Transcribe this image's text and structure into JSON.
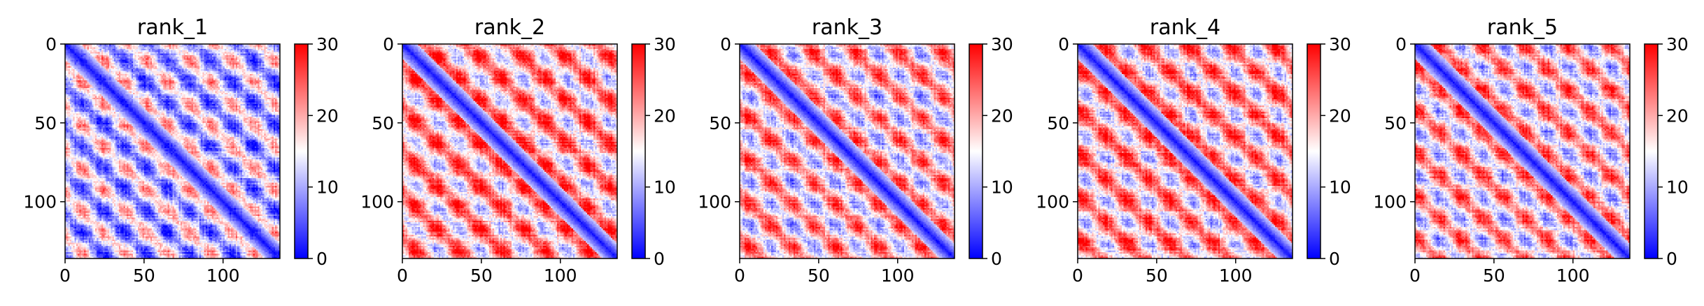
{
  "chart_data": [
    {
      "type": "heatmap",
      "title": "rank_1",
      "matrix_size": 136,
      "xlim": [
        0,
        136
      ],
      "ylim": [
        136,
        0
      ],
      "x_ticks": [
        0,
        50,
        100
      ],
      "y_ticks": [
        0,
        50,
        100
      ],
      "colorbar": {
        "min": 0,
        "max": 30,
        "ticks": [
          0,
          10,
          20,
          30
        ]
      },
      "colormap": [
        "#0000ff",
        "#ffffff",
        "#ff0000"
      ],
      "diagonal": "low values (blue) along the diagonal",
      "pattern": "periodic off-diagonal blocks, mostly blue with red stripes"
    },
    {
      "type": "heatmap",
      "title": "rank_2",
      "matrix_size": 136,
      "xlim": [
        0,
        136
      ],
      "ylim": [
        136,
        0
      ],
      "x_ticks": [
        0,
        50,
        100
      ],
      "y_ticks": [
        0,
        50,
        100
      ],
      "colorbar": {
        "min": 0,
        "max": 30,
        "ticks": [
          0,
          10,
          20,
          30
        ]
      },
      "colormap": [
        "#0000ff",
        "#ffffff",
        "#ff0000"
      ],
      "diagonal": "low values (blue) along the diagonal",
      "pattern": "periodic blocks, predominantly red background"
    },
    {
      "type": "heatmap",
      "title": "rank_3",
      "matrix_size": 136,
      "xlim": [
        0,
        136
      ],
      "ylim": [
        136,
        0
      ],
      "x_ticks": [
        0,
        50,
        100
      ],
      "y_ticks": [
        0,
        50,
        100
      ],
      "colorbar": {
        "min": 0,
        "max": 30,
        "ticks": [
          0,
          10,
          20,
          30
        ]
      },
      "colormap": [
        "#0000ff",
        "#ffffff",
        "#ff0000"
      ],
      "diagonal": "low values (blue) along the diagonal",
      "pattern": "periodic blocks, red background with blue patches"
    },
    {
      "type": "heatmap",
      "title": "rank_4",
      "matrix_size": 136,
      "xlim": [
        0,
        136
      ],
      "ylim": [
        136,
        0
      ],
      "x_ticks": [
        0,
        50,
        100
      ],
      "y_ticks": [
        0,
        50,
        100
      ],
      "colorbar": {
        "min": 0,
        "max": 30,
        "ticks": [
          0,
          10,
          20,
          30
        ]
      },
      "colormap": [
        "#0000ff",
        "#ffffff",
        "#ff0000"
      ],
      "diagonal": "low values (blue) along the diagonal",
      "pattern": "periodic blocks, red background with blue patches"
    },
    {
      "type": "heatmap",
      "title": "rank_5",
      "matrix_size": 136,
      "xlim": [
        0,
        136
      ],
      "ylim": [
        136,
        0
      ],
      "x_ticks": [
        0,
        50,
        100
      ],
      "y_ticks": [
        0,
        50,
        100
      ],
      "colorbar": {
        "min": 0,
        "max": 30,
        "ticks": [
          0,
          10,
          20,
          30
        ]
      },
      "colormap": [
        "#0000ff",
        "#ffffff",
        "#ff0000"
      ],
      "diagonal": "low values (blue) along the diagonal",
      "pattern": "periodic blocks, red background with blue patches"
    }
  ]
}
